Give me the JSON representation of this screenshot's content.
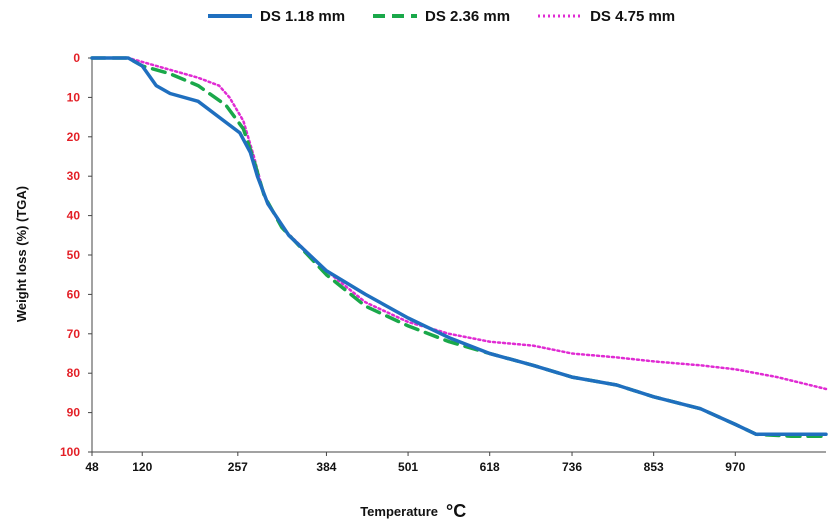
{
  "colors": {
    "ds118": "#1f6fbf",
    "ds236": "#1aa84a",
    "ds475": "#e02bd3",
    "ytick": "#e31f26"
  },
  "chart_data": {
    "type": "line",
    "xlabel": "Temperature",
    "xlabel_unit": "°C",
    "ylabel": "Weight  loss  (%)  (TGA)",
    "x_ticks": [
      "48",
      "120",
      "257",
      "384",
      "501",
      "618",
      "736",
      "853",
      "970"
    ],
    "y_ticks": [
      "0",
      "10",
      "20",
      "30",
      "40",
      "50",
      "60",
      "70",
      "80",
      "90",
      "100"
    ],
    "xlim": [
      48,
      1100
    ],
    "ylim": [
      0,
      100
    ],
    "y_inverted": true,
    "legend_position": "top",
    "series": [
      {
        "name": "DS 1.18 mm",
        "style": "solid",
        "points": [
          [
            48,
            0
          ],
          [
            100,
            0
          ],
          [
            120,
            2
          ],
          [
            140,
            7
          ],
          [
            160,
            9
          ],
          [
            200,
            11
          ],
          [
            230,
            15
          ],
          [
            260,
            19
          ],
          [
            275,
            24
          ],
          [
            285,
            30
          ],
          [
            300,
            37
          ],
          [
            330,
            45
          ],
          [
            384,
            54
          ],
          [
            440,
            60
          ],
          [
            501,
            66
          ],
          [
            560,
            71
          ],
          [
            618,
            75
          ],
          [
            680,
            78
          ],
          [
            736,
            81
          ],
          [
            800,
            83
          ],
          [
            853,
            86
          ],
          [
            920,
            89
          ],
          [
            970,
            93
          ],
          [
            1000,
            95.5
          ],
          [
            1050,
            95.5
          ],
          [
            1100,
            95.5
          ]
        ]
      },
      {
        "name": "DS 2.36 mm",
        "style": "dashed",
        "points": [
          [
            48,
            0
          ],
          [
            100,
            0
          ],
          [
            120,
            2
          ],
          [
            160,
            4
          ],
          [
            200,
            7
          ],
          [
            240,
            12
          ],
          [
            265,
            18
          ],
          [
            280,
            26
          ],
          [
            295,
            35
          ],
          [
            320,
            43
          ],
          [
            384,
            55
          ],
          [
            440,
            63
          ],
          [
            501,
            68
          ],
          [
            560,
            72
          ],
          [
            618,
            75
          ],
          [
            680,
            78
          ],
          [
            736,
            81
          ],
          [
            800,
            83
          ],
          [
            853,
            86
          ],
          [
            920,
            89
          ],
          [
            970,
            93
          ],
          [
            1000,
            95.5
          ],
          [
            1050,
            96
          ],
          [
            1100,
            96
          ]
        ]
      },
      {
        "name": "DS 4.75 mm",
        "style": "dotted",
        "points": [
          [
            48,
            0
          ],
          [
            100,
            0
          ],
          [
            120,
            1
          ],
          [
            160,
            3
          ],
          [
            200,
            5
          ],
          [
            230,
            7
          ],
          [
            245,
            10
          ],
          [
            265,
            16
          ],
          [
            280,
            25
          ],
          [
            295,
            35
          ],
          [
            320,
            43
          ],
          [
            384,
            54
          ],
          [
            440,
            62
          ],
          [
            501,
            67
          ],
          [
            560,
            70
          ],
          [
            618,
            72
          ],
          [
            680,
            73
          ],
          [
            736,
            75
          ],
          [
            800,
            76
          ],
          [
            853,
            77
          ],
          [
            920,
            78
          ],
          [
            970,
            79
          ],
          [
            1030,
            81
          ],
          [
            1100,
            84
          ]
        ]
      }
    ]
  }
}
